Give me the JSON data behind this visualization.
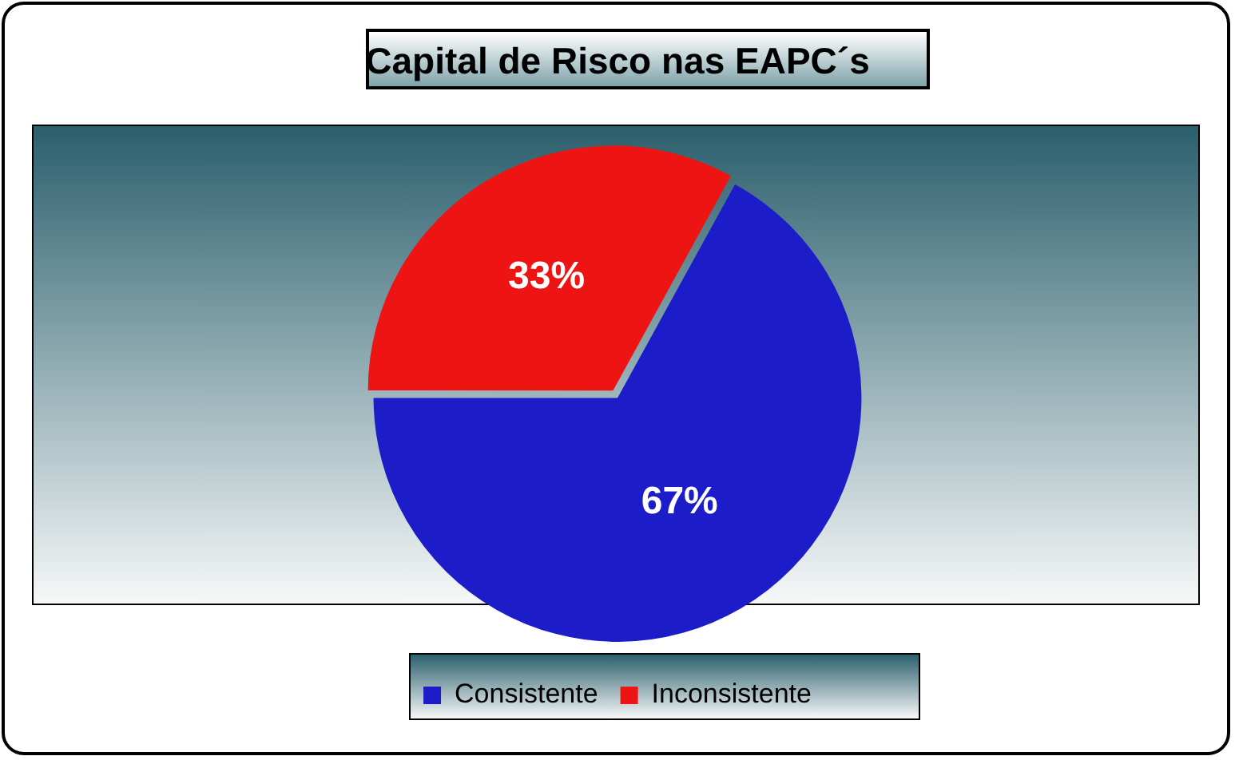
{
  "chart_data": {
    "type": "pie",
    "title": "Capital de Risco nas EAPC´s",
    "categories": [
      "Consistente",
      "Inconsistente"
    ],
    "values": [
      67,
      33
    ],
    "colors": [
      "#1c1cc8",
      "#ee1414"
    ],
    "value_labels": [
      "67%",
      "33%"
    ],
    "legend": "bottom"
  }
}
